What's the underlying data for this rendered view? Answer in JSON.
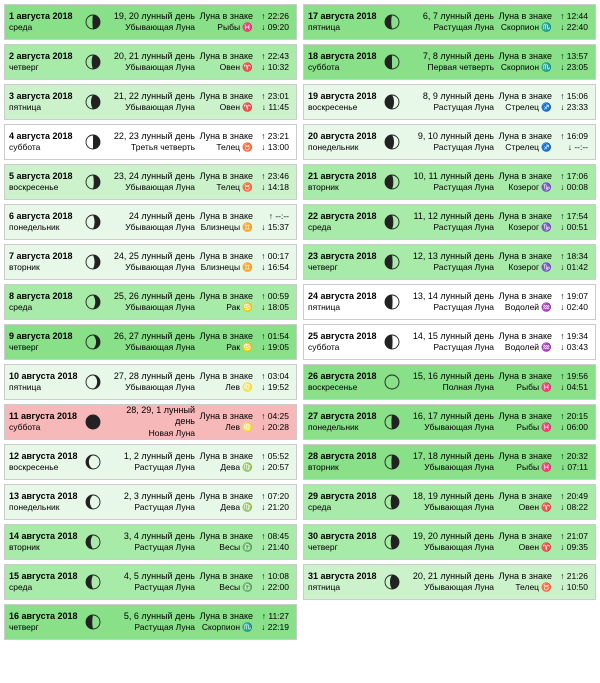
{
  "colors": {
    "shade0": "#ffffff",
    "shade1": "#e8f8e8",
    "shade2": "#ccf2cc",
    "shade3": "#a8eaa8",
    "shade4": "#88e088",
    "shadeRed": "#f6b8b8",
    "border": "#cccccc",
    "moonStroke": "#222222"
  },
  "left": [
    {
      "date": "1 августа 2018",
      "dow": "среда",
      "moon": "wan-gib-late",
      "lunarDay": "19, 20 лунный день",
      "phase": "Убывающая Луна",
      "signLabel": "Луна в знаке",
      "sign": "Рыбы ♓",
      "rise": "↑ 22:26",
      "set": "↓ 09:20",
      "shade": "shade4"
    },
    {
      "date": "2 августа 2018",
      "dow": "четверг",
      "moon": "wan-gib-mid",
      "lunarDay": "20, 21 лунный день",
      "phase": "Убывающая Луна",
      "signLabel": "Луна в знаке",
      "sign": "Овен ♈",
      "rise": "↑ 22:43",
      "set": "↓ 10:32",
      "shade": "shade3"
    },
    {
      "date": "3 августа 2018",
      "dow": "пятница",
      "moon": "wan-gib-early",
      "lunarDay": "21, 22 лунный день",
      "phase": "Убывающая Луна",
      "signLabel": "Луна в знаке",
      "sign": "Овен ♈",
      "rise": "↑ 23:01",
      "set": "↓ 11:45",
      "shade": "shade2"
    },
    {
      "date": "4 августа 2018",
      "dow": "суббота",
      "moon": "last-q",
      "lunarDay": "22, 23 лунный день",
      "phase": "Третья четверть",
      "signLabel": "Луна в знаке",
      "sign": "Телец ♉",
      "rise": "↑ 23:21",
      "set": "↓ 13:00",
      "shade": "shade0"
    },
    {
      "date": "5 августа 2018",
      "dow": "воскресенье",
      "moon": "wan-cres-late",
      "lunarDay": "23, 24 лунный день",
      "phase": "Убывающая Луна",
      "signLabel": "Луна в знаке",
      "sign": "Телец ♉",
      "rise": "↑ 23:46",
      "set": "↓ 14:18",
      "shade": "shade2"
    },
    {
      "date": "6 августа 2018",
      "dow": "понедельник",
      "moon": "wan-cres-mid",
      "lunarDay": "24 лунный день",
      "phase": "Убывающая Луна",
      "signLabel": "Луна в знаке",
      "sign": "Близнецы ♊",
      "rise": "↑ --:--",
      "set": "↓ 15:37",
      "shade": "shade1"
    },
    {
      "date": "7 августа 2018",
      "dow": "вторник",
      "moon": "wan-cres-mid",
      "lunarDay": "24, 25 лунный день",
      "phase": "Убывающая Луна",
      "signLabel": "Луна в знаке",
      "sign": "Близнецы ♊",
      "rise": "↑ 00:17",
      "set": "↓ 16:54",
      "shade": "shade1"
    },
    {
      "date": "8 августа 2018",
      "dow": "среда",
      "moon": "wan-cres-early",
      "lunarDay": "25, 26 лунный день",
      "phase": "Убывающая Луна",
      "signLabel": "Луна в знаке",
      "sign": "Рак ♋",
      "rise": "↑ 00:59",
      "set": "↓ 18:05",
      "shade": "shade3"
    },
    {
      "date": "9 августа 2018",
      "dow": "четверг",
      "moon": "wan-cres-thin",
      "lunarDay": "26, 27 лунный день",
      "phase": "Убывающая Луна",
      "signLabel": "Луна в знаке",
      "sign": "Рак ♋",
      "rise": "↑ 01:54",
      "set": "↓ 19:05",
      "shade": "shade4"
    },
    {
      "date": "10 августа 2018",
      "dow": "пятница",
      "moon": "wan-cres-vthin",
      "lunarDay": "27, 28 лунный день",
      "phase": "Убывающая Луна",
      "signLabel": "Луна в знаке",
      "sign": "Лев ♌",
      "rise": "↑ 03:04",
      "set": "↓ 19:52",
      "shade": "shade1"
    },
    {
      "date": "11 августа 2018",
      "dow": "суббота",
      "moon": "new",
      "lunarDay": "28, 29, 1 лунный день",
      "phase": "Новая Луна",
      "signLabel": "Луна в знаке",
      "sign": "Лев ♌",
      "rise": "↑ 04:25",
      "set": "↓ 20:28",
      "shade": "shadeRed"
    },
    {
      "date": "12 августа 2018",
      "dow": "воскресенье",
      "moon": "wax-cres-vthin",
      "lunarDay": "1, 2 лунный день",
      "phase": "Растущая Луна",
      "signLabel": "Луна в знаке",
      "sign": "Дева ♍",
      "rise": "↑ 05:52",
      "set": "↓ 20:57",
      "shade": "shade1"
    },
    {
      "date": "13 августа 2018",
      "dow": "понедельник",
      "moon": "wax-cres-thin",
      "lunarDay": "2, 3 лунный день",
      "phase": "Растущая Луна",
      "signLabel": "Луна в знаке",
      "sign": "Дева ♍",
      "rise": "↑ 07:20",
      "set": "↓ 21:20",
      "shade": "shade1"
    },
    {
      "date": "14 августа 2018",
      "dow": "вторник",
      "moon": "wax-cres-early",
      "lunarDay": "3, 4 лунный день",
      "phase": "Растущая Луна",
      "signLabel": "Луна в знаке",
      "sign": "Весы ♎",
      "rise": "↑ 08:45",
      "set": "↓ 21:40",
      "shade": "shade3"
    },
    {
      "date": "15 августа 2018",
      "dow": "среда",
      "moon": "wax-cres-mid",
      "lunarDay": "4, 5 лунный день",
      "phase": "Растущая Луна",
      "signLabel": "Луна в знаке",
      "sign": "Весы ♎",
      "rise": "↑ 10:08",
      "set": "↓ 22:00",
      "shade": "shade3"
    },
    {
      "date": "16 августа 2018",
      "dow": "четверг",
      "moon": "wax-cres-late",
      "lunarDay": "5, 6 лунный день",
      "phase": "Растущая Луна",
      "signLabel": "Луна в знаке",
      "sign": "Скорпион ♏",
      "rise": "↑ 11:27",
      "set": "↓ 22:19",
      "shade": "shade4"
    }
  ],
  "right": [
    {
      "date": "17 августа 2018",
      "dow": "пятница",
      "moon": "wax-cres-late",
      "lunarDay": "6, 7 лунный день",
      "phase": "Растущая Луна",
      "signLabel": "Луна в знаке",
      "sign": "Скорпион ♏",
      "rise": "↑ 12:44",
      "set": "↓ 22:40",
      "shade": "shade4"
    },
    {
      "date": "18 августа 2018",
      "dow": "суббота",
      "moon": "first-q",
      "lunarDay": "7, 8 лунный день",
      "phase": "Первая четверть",
      "signLabel": "Луна в знаке",
      "sign": "Скорпион ♏",
      "rise": "↑ 13:57",
      "set": "↓ 23:05",
      "shade": "shade4"
    },
    {
      "date": "19 августа 2018",
      "dow": "воскресенье",
      "moon": "wax-gib-early",
      "lunarDay": "8, 9 лунный день",
      "phase": "Растущая Луна",
      "signLabel": "Луна в знаке",
      "sign": "Стрелец ♐",
      "rise": "↑ 15:06",
      "set": "↓ 23:33",
      "shade": "shade1"
    },
    {
      "date": "20 августа 2018",
      "dow": "понедельник",
      "moon": "wax-gib-early",
      "lunarDay": "9, 10 лунный день",
      "phase": "Растущая Луна",
      "signLabel": "Луна в знаке",
      "sign": "Стрелец ♐",
      "rise": "↑ 16:09",
      "set": "↓ --:--",
      "shade": "shade1"
    },
    {
      "date": "21 августа 2018",
      "dow": "вторник",
      "moon": "wax-gib-mid",
      "lunarDay": "10, 11 лунный день",
      "phase": "Растущая Луна",
      "signLabel": "Луна в знаке",
      "sign": "Козерог ♑",
      "rise": "↑ 17:06",
      "set": "↓ 00:08",
      "shade": "shade3"
    },
    {
      "date": "22 августа 2018",
      "dow": "среда",
      "moon": "wax-gib-mid",
      "lunarDay": "11, 12 лунный день",
      "phase": "Растущая Луна",
      "signLabel": "Луна в знаке",
      "sign": "Козерог ♑",
      "rise": "↑ 17:54",
      "set": "↓ 00:51",
      "shade": "shade3"
    },
    {
      "date": "23 августа 2018",
      "dow": "четверг",
      "moon": "wax-gib-late",
      "lunarDay": "12, 13 лунный день",
      "phase": "Растущая Луна",
      "signLabel": "Луна в знаке",
      "sign": "Козерог ♑",
      "rise": "↑ 18:34",
      "set": "↓ 01:42",
      "shade": "shade3"
    },
    {
      "date": "24 августа 2018",
      "dow": "пятница",
      "moon": "wax-gib-late",
      "lunarDay": "13, 14 лунный день",
      "phase": "Растущая Луна",
      "signLabel": "Луна в знаке",
      "sign": "Водолей ♒",
      "rise": "↑ 19:07",
      "set": "↓ 02:40",
      "shade": "shade0"
    },
    {
      "date": "25 августа 2018",
      "dow": "суббота",
      "moon": "wax-gib-late",
      "lunarDay": "14, 15 лунный день",
      "phase": "Растущая Луна",
      "signLabel": "Луна в знаке",
      "sign": "Водолей ♒",
      "rise": "↑ 19:34",
      "set": "↓ 03:43",
      "shade": "shade0"
    },
    {
      "date": "26 августа 2018",
      "dow": "воскресенье",
      "moon": "full",
      "lunarDay": "15, 16 лунный день",
      "phase": "Полная Луна",
      "signLabel": "Луна в знаке",
      "sign": "Рыбы ♓",
      "rise": "↑ 19:56",
      "set": "↓ 04:51",
      "shade": "shade4"
    },
    {
      "date": "27 августа 2018",
      "dow": "понедельник",
      "moon": "wan-gib-late",
      "lunarDay": "16, 17 лунный день",
      "phase": "Убывающая Луна",
      "signLabel": "Луна в знаке",
      "sign": "Рыбы ♓",
      "rise": "↑ 20:15",
      "set": "↓ 06:00",
      "shade": "shade4"
    },
    {
      "date": "28 августа 2018",
      "dow": "вторник",
      "moon": "wan-gib-late",
      "lunarDay": "17, 18 лунный день",
      "phase": "Убывающая Луна",
      "signLabel": "Луна в знаке",
      "sign": "Рыбы ♓",
      "rise": "↑ 20:32",
      "set": "↓ 07:11",
      "shade": "shade4"
    },
    {
      "date": "29 августа 2018",
      "dow": "среда",
      "moon": "wan-gib-mid",
      "lunarDay": "18, 19 лунный день",
      "phase": "Убывающая Луна",
      "signLabel": "Луна в знаке",
      "sign": "Овен ♈",
      "rise": "↑ 20:49",
      "set": "↓ 08:22",
      "shade": "shade3"
    },
    {
      "date": "30 августа 2018",
      "dow": "четверг",
      "moon": "wan-gib-mid",
      "lunarDay": "19, 20 лунный день",
      "phase": "Убывающая Луна",
      "signLabel": "Луна в знаке",
      "sign": "Овен ♈",
      "rise": "↑ 21:07",
      "set": "↓ 09:35",
      "shade": "shade3"
    },
    {
      "date": "31 августа 2018",
      "dow": "пятница",
      "moon": "wan-gib-early",
      "lunarDay": "20, 21 лунный день",
      "phase": "Убывающая Луна",
      "signLabel": "Луна в знаке",
      "sign": "Телец ♉",
      "rise": "↑ 21:26",
      "set": "↓ 10:50",
      "shade": "shade2"
    }
  ]
}
